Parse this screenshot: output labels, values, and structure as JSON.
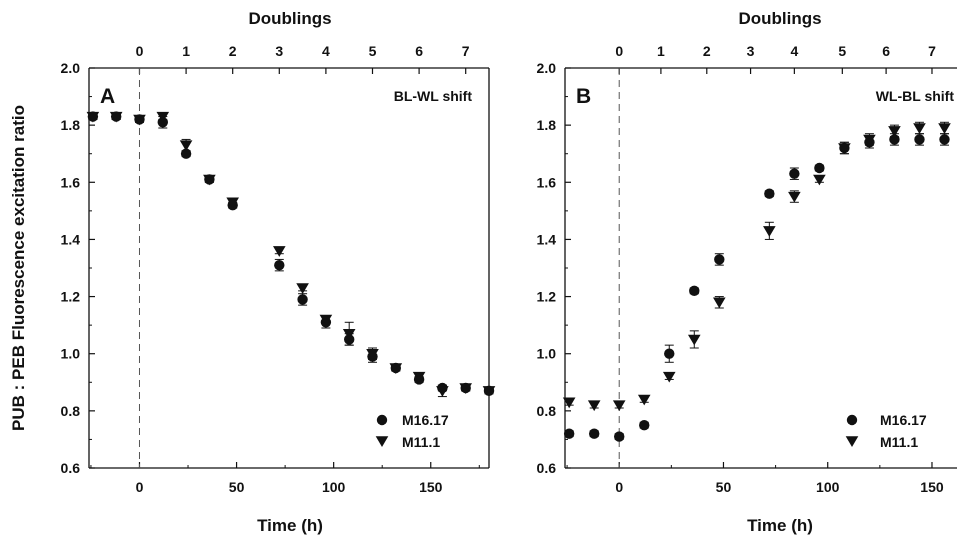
{
  "figure": {
    "ylabel": "PUB : PEB Fluorescence excitation ratio"
  },
  "chart_data": [
    {
      "type": "scatter",
      "panel_label": "A",
      "annotation": "BL-WL shift",
      "xlabel": "Time (h)",
      "top_axis_label": "Doublings",
      "xlim": [
        -26,
        180
      ],
      "ylim": [
        0.6,
        2.0
      ],
      "x_ticks": [
        0,
        50,
        100,
        150
      ],
      "y_ticks": [
        "0.6",
        "0.8",
        "1.0",
        "1.2",
        "1.4",
        "1.6",
        "1.8",
        "2.0"
      ],
      "top_ticks": [
        {
          "label": "0",
          "time": 0
        },
        {
          "label": "1",
          "time": 24
        },
        {
          "label": "2",
          "time": 48
        },
        {
          "label": "3",
          "time": 72
        },
        {
          "label": "4",
          "time": 96
        },
        {
          "label": "5",
          "time": 120
        },
        {
          "label": "6",
          "time": 144
        },
        {
          "label": "7",
          "time": 168
        }
      ],
      "shift_time": 0,
      "legend_position": "bottom-right",
      "series": [
        {
          "name": "M16.17",
          "marker": "circle",
          "points": [
            {
              "x": -24,
              "y": 1.83,
              "err": 0.01
            },
            {
              "x": -12,
              "y": 1.83,
              "err": 0.01
            },
            {
              "x": 0,
              "y": 1.82,
              "err": 0.01
            },
            {
              "x": 12,
              "y": 1.81,
              "err": 0.02
            },
            {
              "x": 24,
              "y": 1.7,
              "err": 0.01
            },
            {
              "x": 36,
              "y": 1.61,
              "err": 0.01
            },
            {
              "x": 48,
              "y": 1.52,
              "err": 0.01
            },
            {
              "x": 72,
              "y": 1.31,
              "err": 0.02
            },
            {
              "x": 84,
              "y": 1.19,
              "err": 0.02
            },
            {
              "x": 96,
              "y": 1.11,
              "err": 0.02
            },
            {
              "x": 108,
              "y": 1.05,
              "err": 0.02
            },
            {
              "x": 120,
              "y": 0.99,
              "err": 0.02
            },
            {
              "x": 132,
              "y": 0.95,
              "err": 0.01
            },
            {
              "x": 144,
              "y": 0.91,
              "err": 0.01
            },
            {
              "x": 156,
              "y": 0.88,
              "err": 0.01
            },
            {
              "x": 168,
              "y": 0.88,
              "err": 0.01
            },
            {
              "x": 180,
              "y": 0.87,
              "err": 0.01
            }
          ]
        },
        {
          "name": "M11.1",
          "marker": "triangle-down",
          "points": [
            {
              "x": -24,
              "y": 1.83,
              "err": 0.01
            },
            {
              "x": -12,
              "y": 1.83,
              "err": 0.01
            },
            {
              "x": 0,
              "y": 1.82,
              "err": 0.01
            },
            {
              "x": 12,
              "y": 1.83,
              "err": 0.01
            },
            {
              "x": 24,
              "y": 1.73,
              "err": 0.02
            },
            {
              "x": 36,
              "y": 1.61,
              "err": 0.01
            },
            {
              "x": 48,
              "y": 1.53,
              "err": 0.01
            },
            {
              "x": 72,
              "y": 1.36,
              "err": 0.01
            },
            {
              "x": 84,
              "y": 1.23,
              "err": 0.01
            },
            {
              "x": 96,
              "y": 1.12,
              "err": 0.01
            },
            {
              "x": 108,
              "y": 1.07,
              "err": 0.04
            },
            {
              "x": 120,
              "y": 1.0,
              "err": 0.02
            },
            {
              "x": 132,
              "y": 0.95,
              "err": 0.01
            },
            {
              "x": 144,
              "y": 0.92,
              "err": 0.01
            },
            {
              "x": 156,
              "y": 0.87,
              "err": 0.02
            },
            {
              "x": 168,
              "y": 0.88,
              "err": 0.01
            },
            {
              "x": 180,
              "y": 0.87,
              "err": 0.01
            }
          ]
        }
      ]
    },
    {
      "type": "scatter",
      "panel_label": "B",
      "annotation": "WL-BL shift",
      "xlabel": "Time (h)",
      "top_axis_label": "Doublings",
      "xlim": [
        -26,
        162
      ],
      "ylim": [
        0.6,
        2.0
      ],
      "x_ticks": [
        0,
        50,
        100,
        150
      ],
      "y_ticks": [
        "0.6",
        "0.8",
        "1.0",
        "1.2",
        "1.4",
        "1.6",
        "1.8",
        "2.0"
      ],
      "top_ticks": [
        {
          "label": "0",
          "time": 0
        },
        {
          "label": "1",
          "time": 20
        },
        {
          "label": "2",
          "time": 42
        },
        {
          "label": "3",
          "time": 63
        },
        {
          "label": "4",
          "time": 84
        },
        {
          "label": "5",
          "time": 107
        },
        {
          "label": "6",
          "time": 128
        },
        {
          "label": "7",
          "time": 150
        }
      ],
      "shift_time": 0,
      "legend_position": "bottom-right",
      "series": [
        {
          "name": "M16.17",
          "marker": "circle",
          "points": [
            {
              "x": -24,
              "y": 0.72,
              "err": 0.01
            },
            {
              "x": -12,
              "y": 0.72,
              "err": 0.01
            },
            {
              "x": 0,
              "y": 0.71,
              "err": 0.01
            },
            {
              "x": 12,
              "y": 0.75,
              "err": 0.01
            },
            {
              "x": 24,
              "y": 1.0,
              "err": 0.03
            },
            {
              "x": 36,
              "y": 1.22,
              "err": 0.01
            },
            {
              "x": 48,
              "y": 1.33,
              "err": 0.02
            },
            {
              "x": 72,
              "y": 1.56,
              "err": 0.01
            },
            {
              "x": 84,
              "y": 1.63,
              "err": 0.02
            },
            {
              "x": 96,
              "y": 1.65,
              "err": 0.01
            },
            {
              "x": 108,
              "y": 1.72,
              "err": 0.02
            },
            {
              "x": 120,
              "y": 1.74,
              "err": 0.02
            },
            {
              "x": 132,
              "y": 1.75,
              "err": 0.02
            },
            {
              "x": 144,
              "y": 1.75,
              "err": 0.02
            },
            {
              "x": 156,
              "y": 1.75,
              "err": 0.02
            }
          ]
        },
        {
          "name": "M11.1",
          "marker": "triangle-down",
          "points": [
            {
              "x": -24,
              "y": 0.83,
              "err": 0.01
            },
            {
              "x": -12,
              "y": 0.82,
              "err": 0.01
            },
            {
              "x": 0,
              "y": 0.82,
              "err": 0.01
            },
            {
              "x": 12,
              "y": 0.84,
              "err": 0.01
            },
            {
              "x": 24,
              "y": 0.92,
              "err": 0.01
            },
            {
              "x": 36,
              "y": 1.05,
              "err": 0.03
            },
            {
              "x": 48,
              "y": 1.18,
              "err": 0.02
            },
            {
              "x": 72,
              "y": 1.43,
              "err": 0.03
            },
            {
              "x": 84,
              "y": 1.55,
              "err": 0.02
            },
            {
              "x": 96,
              "y": 1.61,
              "err": 0.01
            },
            {
              "x": 108,
              "y": 1.72,
              "err": 0.02
            },
            {
              "x": 120,
              "y": 1.75,
              "err": 0.02
            },
            {
              "x": 132,
              "y": 1.78,
              "err": 0.02
            },
            {
              "x": 144,
              "y": 1.79,
              "err": 0.02
            },
            {
              "x": 156,
              "y": 1.79,
              "err": 0.02
            }
          ]
        }
      ]
    }
  ]
}
